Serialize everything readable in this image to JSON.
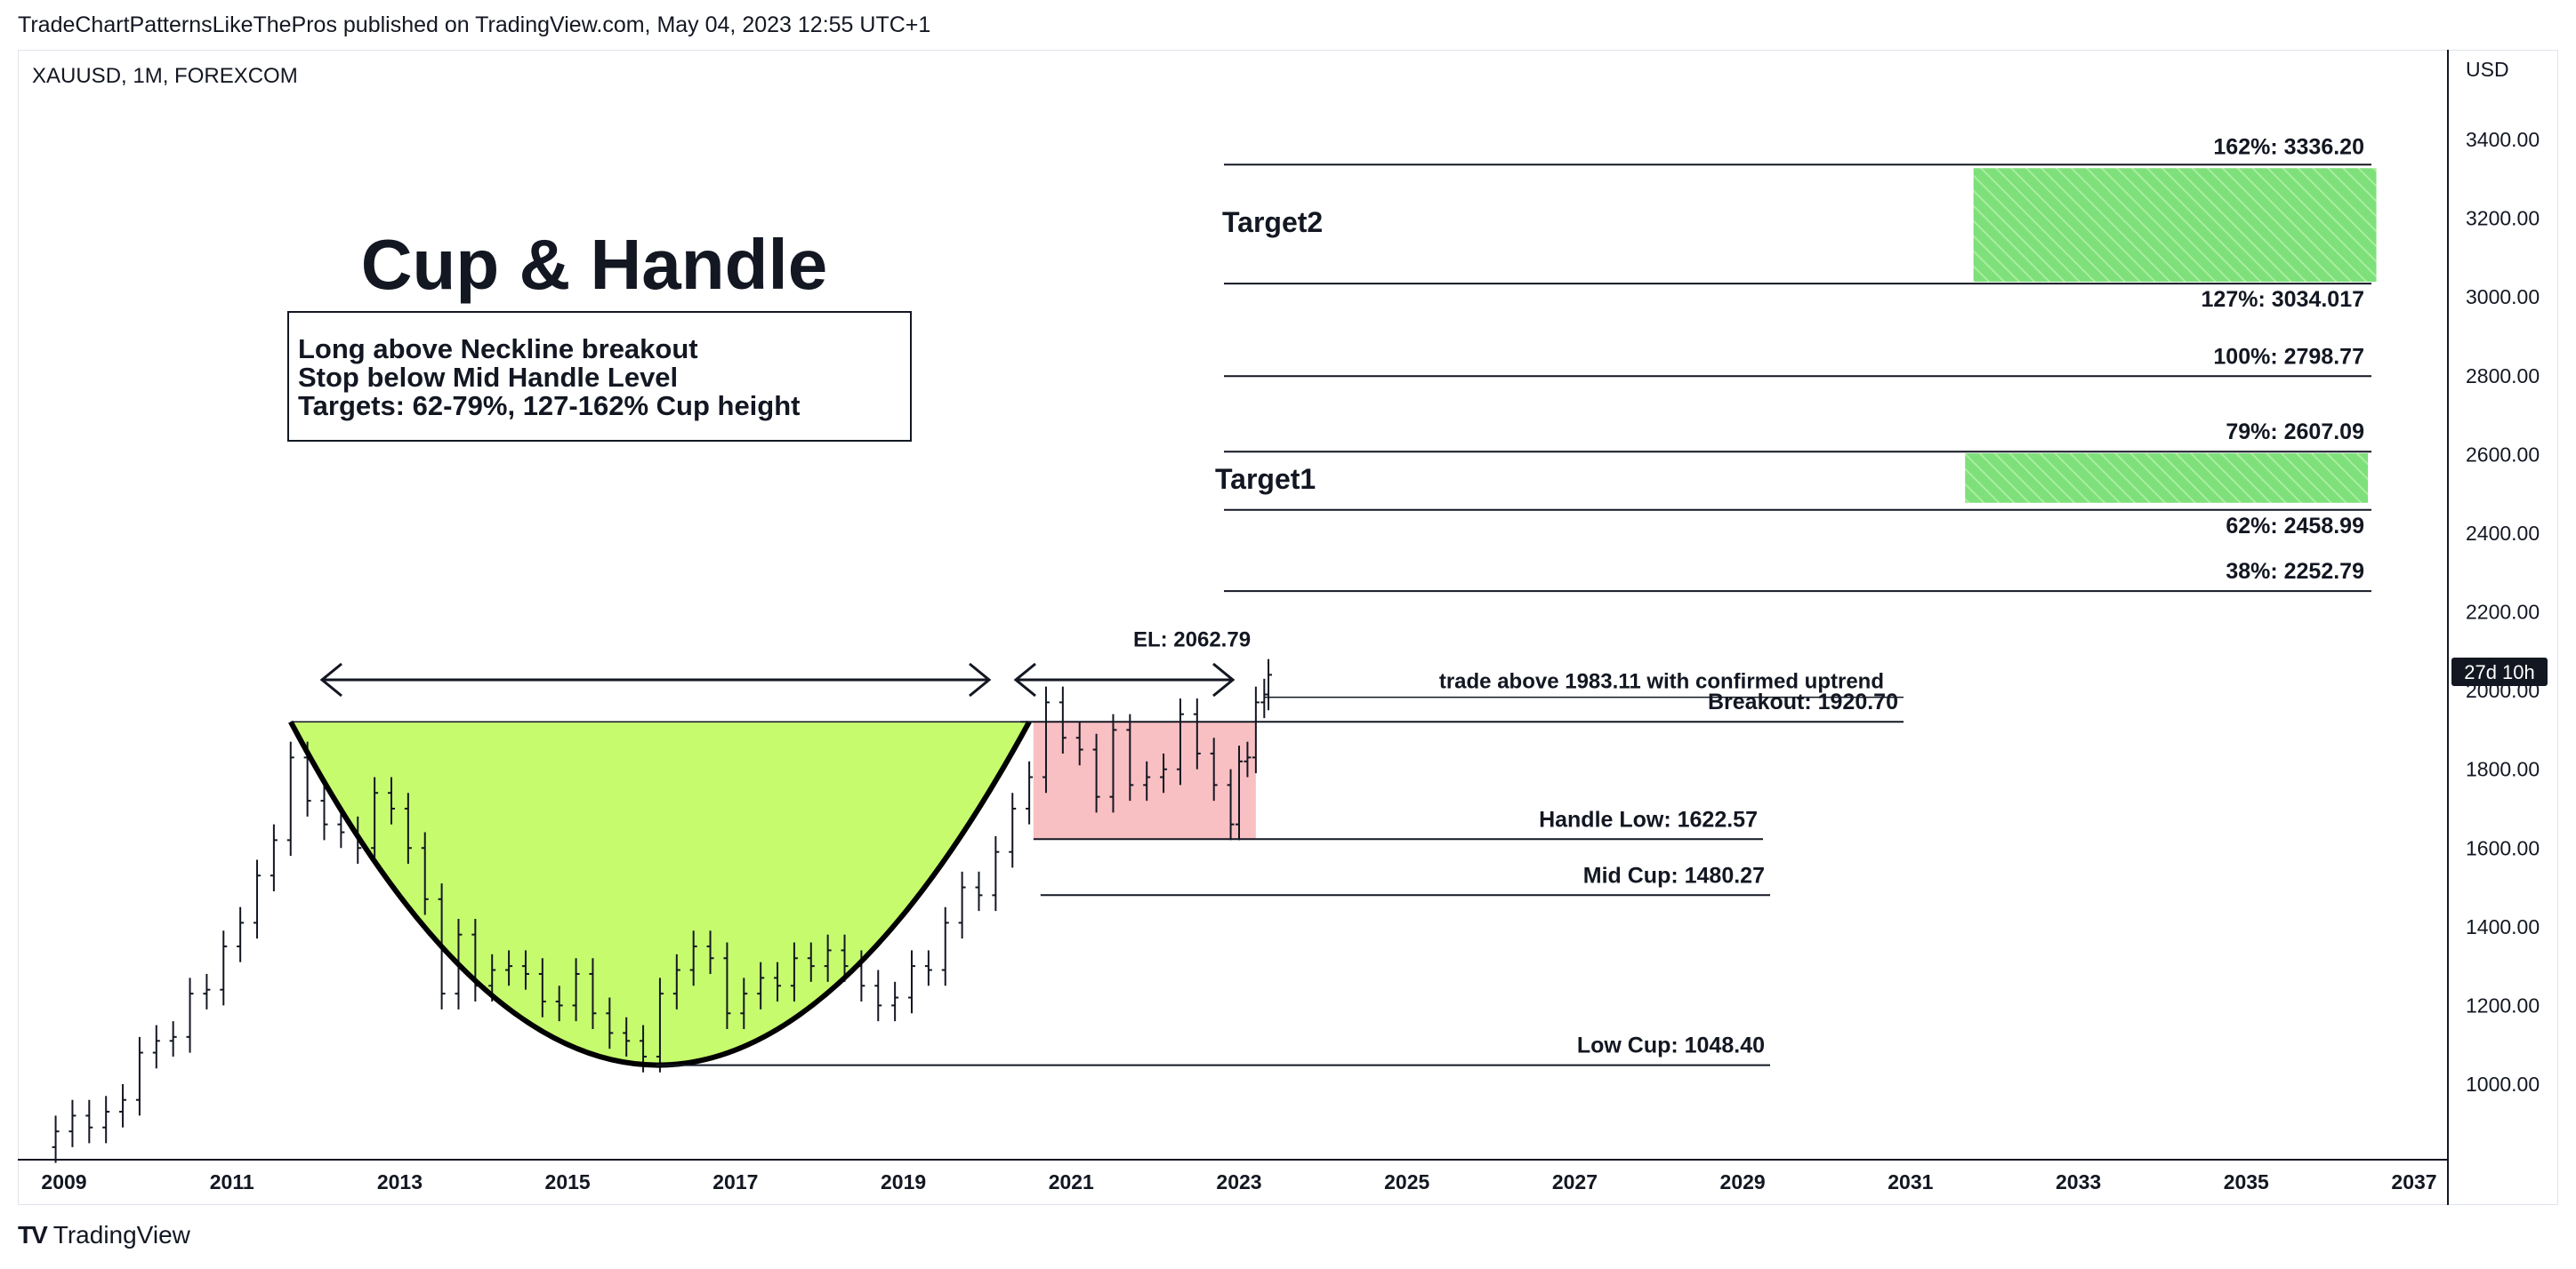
{
  "header": {
    "published": "TradeChartPatternsLikeThePros published on TradingView.com, May 04, 2023 12:55 UTC+1"
  },
  "symbol": "XAUUSD, 1M, FOREXCOM",
  "currency": "USD",
  "countdown": "27d 10h",
  "footer": {
    "brand": "TradingView",
    "logo": "TV"
  },
  "colors": {
    "cup_fill": "#c6fb6e",
    "handle_fill": "#f9c0c3",
    "target_fill": "#7ee07a",
    "line": "#131722",
    "grid_text": "#131722"
  },
  "chart_data": {
    "type": "line",
    "title": "Cup & Handle",
    "y_axis": {
      "ticks": [
        "1000.00",
        "1200.00",
        "1400.00",
        "1600.00",
        "1800.00",
        "2000.00",
        "2200.00",
        "2400.00",
        "2600.00",
        "2800.00",
        "3000.00",
        "3200.00",
        "3400.00"
      ],
      "ylim": [
        800,
        3600
      ]
    },
    "x_axis": {
      "ticks": [
        "2009",
        "2011",
        "2013",
        "2015",
        "2017",
        "2019",
        "2021",
        "2023",
        "2025",
        "2027",
        "2029",
        "2031",
        "2033",
        "2035",
        "2037"
      ]
    },
    "note_lines": [
      "Long above Neckline breakout",
      "Stop below Mid Handle Level",
      "Targets: 62-79%, 127-162% Cup height"
    ],
    "monthly_close": [
      [
        2008.7,
        840
      ],
      [
        2008.9,
        880
      ],
      [
        2009.1,
        920
      ],
      [
        2009.3,
        890
      ],
      [
        2009.5,
        930
      ],
      [
        2009.7,
        960
      ],
      [
        2009.9,
        1080
      ],
      [
        2010.1,
        1110
      ],
      [
        2010.3,
        1120
      ],
      [
        2010.5,
        1230
      ],
      [
        2010.7,
        1240
      ],
      [
        2010.9,
        1350
      ],
      [
        2011.1,
        1410
      ],
      [
        2011.3,
        1530
      ],
      [
        2011.5,
        1620
      ],
      [
        2011.7,
        1830
      ],
      [
        2011.9,
        1720
      ],
      [
        2012.1,
        1660
      ],
      [
        2012.3,
        1640
      ],
      [
        2012.5,
        1600
      ],
      [
        2012.7,
        1740
      ],
      [
        2012.9,
        1700
      ],
      [
        2013.1,
        1600
      ],
      [
        2013.3,
        1470
      ],
      [
        2013.5,
        1230
      ],
      [
        2013.7,
        1380
      ],
      [
        2013.9,
        1250
      ],
      [
        2014.1,
        1290
      ],
      [
        2014.3,
        1300
      ],
      [
        2014.5,
        1280
      ],
      [
        2014.7,
        1210
      ],
      [
        2014.9,
        1200
      ],
      [
        2015.1,
        1280
      ],
      [
        2015.3,
        1180
      ],
      [
        2015.5,
        1130
      ],
      [
        2015.7,
        1110
      ],
      [
        2015.9,
        1070
      ],
      [
        2016.1,
        1230
      ],
      [
        2016.3,
        1290
      ],
      [
        2016.5,
        1350
      ],
      [
        2016.7,
        1320
      ],
      [
        2016.9,
        1180
      ],
      [
        2017.1,
        1230
      ],
      [
        2017.3,
        1270
      ],
      [
        2017.5,
        1250
      ],
      [
        2017.7,
        1320
      ],
      [
        2017.9,
        1300
      ],
      [
        2018.1,
        1340
      ],
      [
        2018.3,
        1300
      ],
      [
        2018.5,
        1250
      ],
      [
        2018.7,
        1200
      ],
      [
        2018.9,
        1220
      ],
      [
        2019.1,
        1300
      ],
      [
        2019.3,
        1290
      ],
      [
        2019.5,
        1410
      ],
      [
        2019.7,
        1500
      ],
      [
        2019.9,
        1480
      ],
      [
        2020.1,
        1590
      ],
      [
        2020.3,
        1700
      ],
      [
        2020.5,
        1780
      ],
      [
        2020.7,
        1970
      ],
      [
        2020.9,
        1880
      ],
      [
        2021.1,
        1850
      ],
      [
        2021.3,
        1730
      ],
      [
        2021.5,
        1900
      ],
      [
        2021.7,
        1760
      ],
      [
        2021.9,
        1780
      ],
      [
        2022.1,
        1800
      ],
      [
        2022.3,
        1940
      ],
      [
        2022.5,
        1840
      ],
      [
        2022.7,
        1760
      ],
      [
        2022.9,
        1660
      ],
      [
        2023.0,
        1820
      ],
      [
        2023.1,
        1830
      ],
      [
        2023.2,
        1970
      ],
      [
        2023.3,
        1990
      ],
      [
        2023.35,
        2040
      ]
    ],
    "levels": [
      {
        "label": "162%: 3336.20",
        "value": 3336.2
      },
      {
        "label": "127%: 3034.017",
        "value": 3034.017
      },
      {
        "label": "100%: 2798.77",
        "value": 2798.77
      },
      {
        "label": "79%: 2607.09",
        "value": 2607.09
      },
      {
        "label": "62%: 2458.99",
        "value": 2458.99
      },
      {
        "label": "38%: 2252.79",
        "value": 2252.79
      },
      {
        "label": "Breakout: 1920.70",
        "value": 1920.7
      },
      {
        "label": "Handle Low: 1622.57",
        "value": 1622.57
      },
      {
        "label": "Mid Cup: 1480.27",
        "value": 1480.27
      },
      {
        "label": "Low Cup: 1048.40",
        "value": 1048.4
      }
    ],
    "annotations": {
      "target2": "Target2",
      "target1": "Target1",
      "el": "EL: 2062.79",
      "trade": "trade above 1983.11 with confirmed uptrend"
    }
  }
}
